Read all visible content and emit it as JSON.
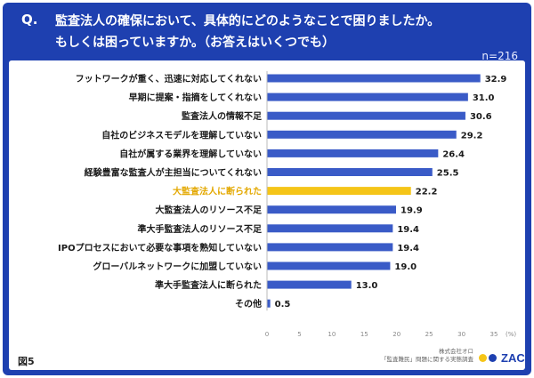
{
  "header": {
    "q": "Q.",
    "line1": "監査法人の確保において、具体的にどのようなことで困りましたか。",
    "line2": "もしくは困っていますか。（お答えはいくつでも）",
    "n": "n=216"
  },
  "figure_label": "図5",
  "company": {
    "name": "株式会社オロ",
    "survey": "「監査難民」問題に関する実態調査"
  },
  "logo_text": "ZAC",
  "colors": {
    "bar": "#3a5bc7",
    "highlight": "#f5c518",
    "header": "#1e40b0"
  },
  "chart_data": {
    "type": "bar",
    "orientation": "horizontal",
    "categories": [
      "フットワークが重く、迅速に対応してくれない",
      "早期に提案・指摘をしてくれない",
      "監査法人の情報不足",
      "自社のビジネスモデルを理解していない",
      "自社が属する業界を理解していない",
      "経験豊富な監査人が主担当についてくれない",
      "大監査法人に断られた",
      "大監査法人のリソース不足",
      "準大手監査法人のリソース不足",
      "IPOプロセスにおいて必要な事項を熟知していない",
      "グローバルネットワークに加盟していない",
      "準大手監査法人に断られた",
      "その他"
    ],
    "values": [
      32.9,
      31.0,
      30.6,
      29.2,
      26.4,
      25.5,
      22.2,
      19.9,
      19.4,
      19.4,
      19.0,
      13.0,
      0.5
    ],
    "value_labels": [
      "32.9",
      "31.0",
      "30.6",
      "29.2",
      "26.4",
      "25.5",
      "22.2",
      "19.9",
      "19.4",
      "19.4",
      "19.0",
      "13.0",
      "0.5"
    ],
    "highlight_index": 6,
    "xticks": [
      "0",
      "5",
      "10",
      "15",
      "20",
      "25",
      "30",
      "35"
    ],
    "xunit": "(%)",
    "xlim": [
      0,
      35
    ],
    "grid": false
  }
}
